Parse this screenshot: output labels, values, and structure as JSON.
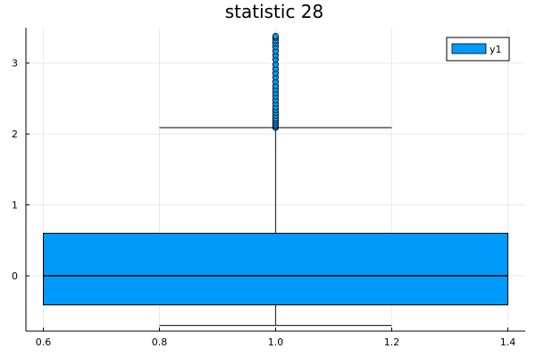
{
  "chart_data": {
    "type": "box",
    "title": "statistic 28",
    "xlabel": "",
    "ylabel": "",
    "xlim": [
      0.57,
      1.43
    ],
    "ylim": [
      -0.78,
      3.5
    ],
    "x_ticks": [
      0.6,
      0.8,
      1.0,
      1.2,
      1.4
    ],
    "x_tick_labels": [
      "0.6",
      "0.8",
      "1.0",
      "1.2",
      "1.4"
    ],
    "y_ticks": [
      0,
      1,
      2,
      3
    ],
    "y_tick_labels": [
      "0",
      "1",
      "2",
      "3"
    ],
    "grid": true,
    "legend": {
      "position": "top-right",
      "entries": [
        "y1"
      ]
    },
    "series": [
      {
        "name": "y1",
        "color": "#009AFA",
        "x": 1.0,
        "box_left": 0.6,
        "box_right": 1.4,
        "whisker_left": 0.8,
        "whisker_right": 1.2,
        "q1": -0.41,
        "median": 0.0,
        "q3": 0.6,
        "whisker_low": -0.7,
        "whisker_high": 2.09,
        "outliers": [
          2.09,
          2.11,
          2.13,
          2.16,
          2.19,
          2.22,
          2.26,
          2.3,
          2.34,
          2.38,
          2.43,
          2.48,
          2.53,
          2.58,
          2.63,
          2.68,
          2.74,
          2.8,
          2.86,
          2.92,
          2.98,
          3.05,
          3.11,
          3.17,
          3.23,
          3.28,
          3.32,
          3.36,
          3.38
        ]
      }
    ]
  }
}
